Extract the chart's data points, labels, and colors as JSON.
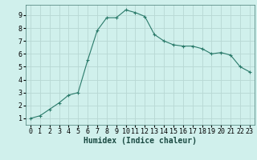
{
  "x": [
    0,
    1,
    2,
    3,
    4,
    5,
    6,
    7,
    8,
    9,
    10,
    11,
    12,
    13,
    14,
    15,
    16,
    17,
    18,
    19,
    20,
    21,
    22,
    23
  ],
  "y": [
    1.0,
    1.2,
    1.7,
    2.2,
    2.8,
    3.0,
    5.5,
    7.8,
    8.8,
    8.8,
    9.4,
    9.2,
    8.9,
    7.5,
    7.0,
    6.7,
    6.6,
    6.6,
    6.4,
    6.0,
    6.1,
    5.9,
    5.0,
    4.6
  ],
  "xlim": [
    -0.5,
    23.5
  ],
  "ylim": [
    0.5,
    9.8
  ],
  "xticks": [
    0,
    1,
    2,
    3,
    4,
    5,
    6,
    7,
    8,
    9,
    10,
    11,
    12,
    13,
    14,
    15,
    16,
    17,
    18,
    19,
    20,
    21,
    22,
    23
  ],
  "yticks": [
    1,
    2,
    3,
    4,
    5,
    6,
    7,
    8,
    9
  ],
  "xlabel": "Humidex (Indice chaleur)",
  "line_color": "#2a7a6a",
  "bg_color": "#d0f0ec",
  "grid_color": "#b8d8d4",
  "marker": "+",
  "xlabel_fontsize": 7,
  "tick_fontsize": 6
}
